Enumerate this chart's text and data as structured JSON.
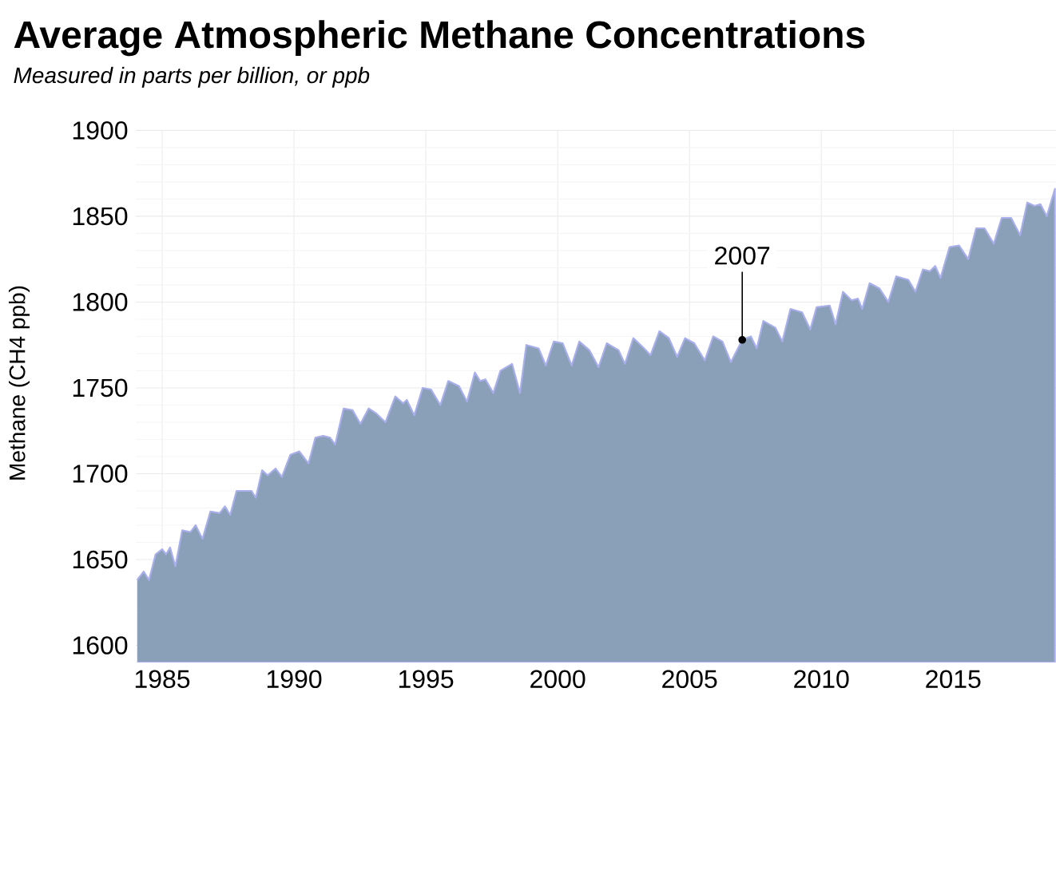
{
  "chart_data": {
    "type": "area",
    "title": "Average Atmospheric Methane Concentrations",
    "subtitle": "Measured in parts per billion, or ppb",
    "ylabel": "Methane (CH4 ppb)",
    "x": [
      1984.05,
      1984.3,
      1984.5,
      1984.75,
      1985.0,
      1985.15,
      1985.3,
      1985.5,
      1985.76,
      1986.07,
      1986.27,
      1986.53,
      1986.83,
      1987.18,
      1987.38,
      1987.58,
      1987.82,
      1988.39,
      1988.55,
      1988.79,
      1989.0,
      1989.3,
      1989.54,
      1989.86,
      1990.2,
      1990.55,
      1990.81,
      1991.11,
      1991.37,
      1991.56,
      1991.88,
      1992.22,
      1992.52,
      1992.83,
      1993.13,
      1993.47,
      1993.84,
      1994.14,
      1994.28,
      1994.56,
      1994.88,
      1995.2,
      1995.55,
      1995.85,
      1996.26,
      1996.56,
      1996.86,
      1997.06,
      1997.26,
      1997.56,
      1997.83,
      1998.27,
      1998.57,
      1998.81,
      1999.28,
      1999.55,
      1999.85,
      2000.19,
      2000.53,
      2000.82,
      2001.2,
      2001.55,
      2001.86,
      2002.31,
      2002.55,
      2002.87,
      2003.28,
      2003.52,
      2003.86,
      2004.22,
      2004.53,
      2004.83,
      2005.18,
      2005.58,
      2005.9,
      2006.25,
      2006.57,
      2007.0,
      2007.33,
      2007.55,
      2007.8,
      2008.26,
      2008.52,
      2008.83,
      2009.27,
      2009.58,
      2009.82,
      2010.32,
      2010.54,
      2010.82,
      2011.15,
      2011.39,
      2011.55,
      2011.83,
      2012.2,
      2012.54,
      2012.84,
      2013.3,
      2013.57,
      2013.85,
      2014.12,
      2014.32,
      2014.52,
      2014.86,
      2015.22,
      2015.57,
      2015.87,
      2016.19,
      2016.54,
      2016.84,
      2017.2,
      2017.54,
      2017.81,
      2018.09,
      2018.31,
      2018.55,
      2018.86
    ],
    "values": [
      1638,
      1643,
      1638,
      1653,
      1656,
      1653,
      1657,
      1646,
      1667,
      1666,
      1670,
      1662,
      1678,
      1677,
      1681,
      1676,
      1690,
      1690,
      1686,
      1702,
      1699,
      1703,
      1698,
      1711,
      1713,
      1706,
      1721,
      1722,
      1721,
      1717,
      1738,
      1737,
      1729,
      1738,
      1735,
      1730,
      1745,
      1741,
      1743,
      1734,
      1750,
      1749,
      1740,
      1754,
      1751,
      1742,
      1759,
      1754,
      1755,
      1747,
      1760,
      1764,
      1747,
      1775,
      1773,
      1763,
      1777,
      1776,
      1763,
      1777,
      1772,
      1762,
      1776,
      1772,
      1764,
      1779,
      1773,
      1769,
      1783,
      1779,
      1768,
      1779,
      1776,
      1766,
      1780,
      1777,
      1765,
      1778,
      1780,
      1773,
      1789,
      1785,
      1777,
      1796,
      1794,
      1784,
      1797,
      1798,
      1787,
      1806,
      1801,
      1802,
      1796,
      1811,
      1808,
      1800,
      1815,
      1813,
      1806,
      1819,
      1818,
      1821,
      1814,
      1832,
      1833,
      1825,
      1843,
      1843,
      1834,
      1849,
      1849,
      1839,
      1858,
      1856,
      1857,
      1850,
      1866
    ],
    "color": "#8a9fb8",
    "xlim": [
      1984,
      2018.9
    ],
    "ylim": [
      1590,
      1900
    ],
    "xticks": [
      1985,
      1990,
      1995,
      2000,
      2005,
      2010,
      2015
    ],
    "yticks": [
      1600,
      1650,
      1700,
      1750,
      1800,
      1850,
      1900
    ],
    "grid": true,
    "annotations": [
      {
        "text": "2007",
        "x": 2007,
        "y": 1778
      }
    ]
  }
}
